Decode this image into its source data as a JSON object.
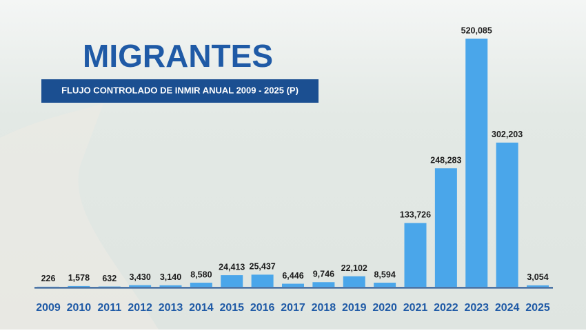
{
  "chart_data": {
    "type": "bar",
    "title": "MIGRANTES",
    "subtitle": "FLUJO CONTROLADO DE INMIR ANUAL 2009 - 2025 (P)",
    "categories": [
      "2009",
      "2010",
      "2011",
      "2012",
      "2013",
      "2014",
      "2015",
      "2016",
      "2017",
      "2018",
      "2019",
      "2020",
      "2021",
      "2022",
      "2023",
      "2024",
      "2025"
    ],
    "values": [
      226,
      1578,
      632,
      3430,
      3140,
      8580,
      24413,
      25437,
      6446,
      9746,
      22102,
      8594,
      133726,
      248283,
      520085,
      302203,
      3054
    ],
    "value_labels": [
      "226",
      "1,578",
      "632",
      "3,430",
      "3,140",
      "8,580",
      "24,413",
      "25,437",
      "6,446",
      "9,746",
      "22,102",
      "8,594",
      "133,726",
      "248,283",
      "520,085",
      "302,203",
      "3,054"
    ],
    "color": "#4aa6ea"
  }
}
